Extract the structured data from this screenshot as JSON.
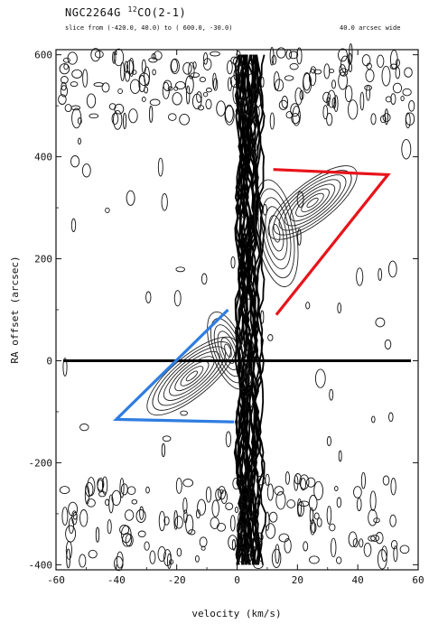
{
  "header": {
    "title_prefix": "NGC2264G ",
    "title_isotope": "12",
    "title_suffix": "CO(2-1)",
    "slice": "slice from (-420.0,   40.0) to ( 600.0,  -30.0)",
    "width": "40.0 arcsec wide"
  },
  "chart_data": {
    "type": "heatmap",
    "title": "NGC2264G 12CO(2-1)",
    "xlabel": "velocity (km/s)",
    "ylabel": "RA offset (arcsec)",
    "xlim": [
      -60,
      60
    ],
    "ylim": [
      -410,
      610
    ],
    "x_ticks": [
      "-60",
      "-40",
      "-20",
      "0",
      "20",
      "40",
      "60"
    ],
    "y_ticks": [
      "-400",
      "-200",
      "0",
      "200",
      "400",
      "600"
    ],
    "x_tick_values": [
      -60,
      -40,
      -20,
      0,
      20,
      40,
      60
    ],
    "y_tick_values": [
      -400,
      -200,
      0,
      200,
      400,
      600
    ],
    "description_series": [
      {
        "role": "ambient-cloud-emission",
        "v_center": 5,
        "v_halfwidth": 4
      },
      {
        "role": "red-lobe",
        "points": [
          [
            13,
            90
          ],
          [
            50,
            365
          ],
          [
            12,
            375
          ]
        ]
      },
      {
        "role": "blue-lobe",
        "points": [
          [
            -3,
            100
          ],
          [
            -40,
            -115
          ],
          [
            -1,
            -120
          ]
        ]
      }
    ],
    "overlays": {
      "horizontal_line": {
        "y": 0,
        "color": "#000000"
      },
      "red_wedge": {
        "points": [
          [
            13,
            90
          ],
          [
            50,
            365
          ],
          [
            12,
            375
          ]
        ],
        "color": "#e8141b"
      },
      "blue_wedge": {
        "points": [
          [
            -3,
            100
          ],
          [
            -40,
            -115
          ],
          [
            -1,
            -120
          ]
        ],
        "color": "#2f7de0"
      }
    }
  }
}
